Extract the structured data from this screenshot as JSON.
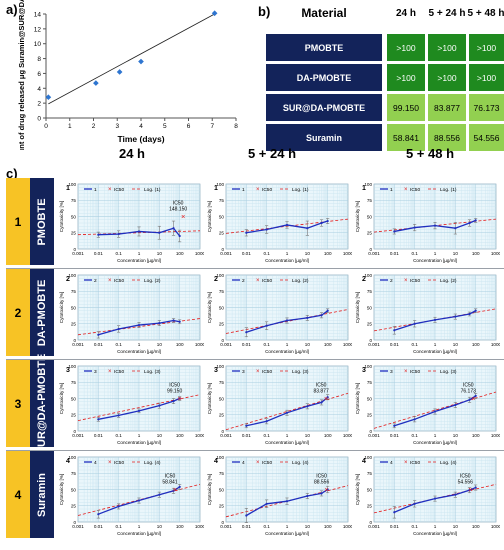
{
  "panel_labels": {
    "a": "a)",
    "b": "b)",
    "c": "c)"
  },
  "colors": {
    "navy": "#13235a",
    "dark_green": "#1f8a1f",
    "light_green": "#92d050",
    "gold": "#f7c325",
    "blue": "#1f2fbf",
    "red": "#e41a1a"
  },
  "chart_data": [
    {
      "id": "a",
      "type": "scatter",
      "xlabel": "Time (days)",
      "ylabel": "Amount of drug released μg Suramin@SUR@DA-PMOBTE",
      "xlim": [
        0,
        8
      ],
      "ylim": [
        0,
        14
      ],
      "xticks": [
        0,
        1,
        2,
        3,
        4,
        5,
        6,
        7,
        8
      ],
      "yticks": [
        0,
        2,
        4,
        6,
        8,
        10,
        12,
        14
      ],
      "points": [
        [
          0.1,
          2.8
        ],
        [
          2.1,
          4.7
        ],
        [
          3.1,
          6.2
        ],
        [
          4.0,
          7.6
        ],
        [
          7.1,
          14.1
        ]
      ],
      "trend": [
        [
          0.1,
          1.9
        ],
        [
          7.1,
          14.0
        ]
      ]
    }
  ],
  "table": {
    "header": {
      "material": "Material",
      "cols": [
        "24 h",
        "5 + 24 h",
        "5 + 48 h"
      ]
    },
    "rows": [
      {
        "name": "PMOBTE",
        "values": [
          ">100",
          ">100",
          ">100"
        ],
        "shade": [
          "dark",
          "dark",
          "dark"
        ]
      },
      {
        "name": "DA-PMOBTE",
        "values": [
          ">100",
          ">100",
          ">100"
        ],
        "shade": [
          "dark",
          "dark",
          "dark"
        ]
      },
      {
        "name": "SUR@DA-PMOBTE",
        "values": [
          "99.150",
          "83.877",
          "76.173"
        ],
        "shade": [
          "light",
          "light",
          "light"
        ]
      },
      {
        "name": "Suramin",
        "values": [
          "58.841",
          "88.556",
          "54.556"
        ],
        "shade": [
          "light",
          "light",
          "light"
        ]
      }
    ]
  },
  "grid": {
    "col_titles": [
      "24 h",
      "5 + 24 h",
      "5 + 48 h"
    ],
    "rows": [
      {
        "num": "1",
        "name": "PMOBTE"
      },
      {
        "num": "2",
        "name": "DA-PMOBTE"
      },
      {
        "num": "3",
        "name": "SUR@DA-PMOBTE"
      },
      {
        "num": "4",
        "name": "Suramin"
      }
    ],
    "ylabel": "Cytotoxicity [%]",
    "xlabel": "Concentration [µg/ml]",
    "xticks": [
      "0.001",
      "0.01",
      "0.1",
      "1",
      "10",
      "100",
      "1000"
    ],
    "yticks": [
      "0",
      "25",
      "50",
      "75",
      "100"
    ],
    "legend_ic50": "IC50",
    "ic50_word": "IC50",
    "plots": [
      [
        {
          "label": "1",
          "legend": "Log. (1)",
          "y": [
            22,
            23,
            27,
            25,
            32,
            20
          ],
          "err": [
            4,
            5,
            7,
            10,
            11,
            9
          ],
          "ic50": {
            "x": 148.15,
            "y": 50,
            "text": "148.150"
          },
          "fit": [
            22,
            28
          ]
        },
        {
          "label": "1",
          "legend": "Log. (1)",
          "y": [
            25,
            30,
            37,
            32,
            40,
            43
          ],
          "err": [
            5,
            6,
            5,
            11,
            5,
            4
          ],
          "ic50": null,
          "fit": [
            24,
            46
          ]
        },
        {
          "label": "1",
          "legend": "Log. (1)",
          "y": [
            27,
            33,
            36,
            32,
            40,
            44
          ],
          "err": [
            4,
            5,
            5,
            9,
            5,
            3
          ],
          "ic50": null,
          "fit": [
            26,
            46
          ]
        }
      ],
      [
        {
          "label": "2",
          "legend": "Log. (2)",
          "y": [
            8,
            17,
            23,
            26,
            30,
            28
          ],
          "err": [
            5,
            5,
            4,
            4,
            3,
            3
          ],
          "ic50": null,
          "fit": [
            8,
            33
          ]
        },
        {
          "label": "2",
          "legend": "Log. (2)",
          "y": [
            12,
            22,
            30,
            34,
            38,
            45
          ],
          "err": [
            7,
            6,
            4,
            4,
            4,
            3
          ],
          "ic50": null,
          "fit": [
            10,
            47
          ]
        },
        {
          "label": "2",
          "legend": "Log. (2)",
          "y": [
            15,
            25,
            31,
            36,
            40,
            45
          ],
          "err": [
            6,
            5,
            4,
            4,
            3,
            3
          ],
          "ic50": null,
          "fit": [
            14,
            48
          ]
        }
      ],
      [
        {
          "label": "3",
          "legend": "Log. (3)",
          "y": [
            18,
            24,
            31,
            39,
            46,
            50
          ],
          "err": [
            3,
            3,
            3,
            4,
            4,
            3
          ],
          "ic50": {
            "x": 99.15,
            "y": 50,
            "text": "99.150"
          },
          "fit": [
            16,
            56
          ]
        },
        {
          "label": "3",
          "legend": "Log. (3)",
          "y": [
            8,
            15,
            28,
            38,
            44,
            52
          ],
          "err": [
            3,
            4,
            4,
            4,
            4,
            4
          ],
          "ic50": {
            "x": 83.877,
            "y": 50,
            "text": "83.877"
          },
          "fit": [
            2,
            58
          ]
        },
        {
          "label": "3",
          "legend": "Log. (3)",
          "y": [
            8,
            18,
            30,
            40,
            48,
            54
          ],
          "err": [
            3,
            4,
            4,
            4,
            4,
            4
          ],
          "ic50": {
            "x": 76.173,
            "y": 50,
            "text": "76.173"
          },
          "fit": [
            4,
            60
          ]
        }
      ],
      [
        {
          "label": "4",
          "legend": "Log. (4)",
          "y": [
            12,
            24,
            33,
            42,
            48,
            54
          ],
          "err": [
            6,
            4,
            4,
            4,
            4,
            4
          ],
          "ic50": {
            "x": 58.841,
            "y": 50,
            "text": "58.841"
          },
          "fit": [
            10,
            58
          ]
        },
        {
          "label": "4",
          "legend": "Log. (4)",
          "y": [
            10,
            28,
            32,
            40,
            44,
            50
          ],
          "err": [
            11,
            6,
            5,
            4,
            4,
            5
          ],
          "ic50": {
            "x": 88.556,
            "y": 50,
            "text": "88.556"
          },
          "fit": [
            8,
            56
          ]
        },
        {
          "label": "4",
          "legend": "Log. (4)",
          "y": [
            15,
            28,
            36,
            42,
            49,
            53
          ],
          "err": [
            9,
            5,
            4,
            4,
            4,
            4
          ],
          "ic50": {
            "x": 54.556,
            "y": 50,
            "text": "54.556"
          },
          "fit": [
            14,
            58
          ]
        }
      ]
    ]
  }
}
